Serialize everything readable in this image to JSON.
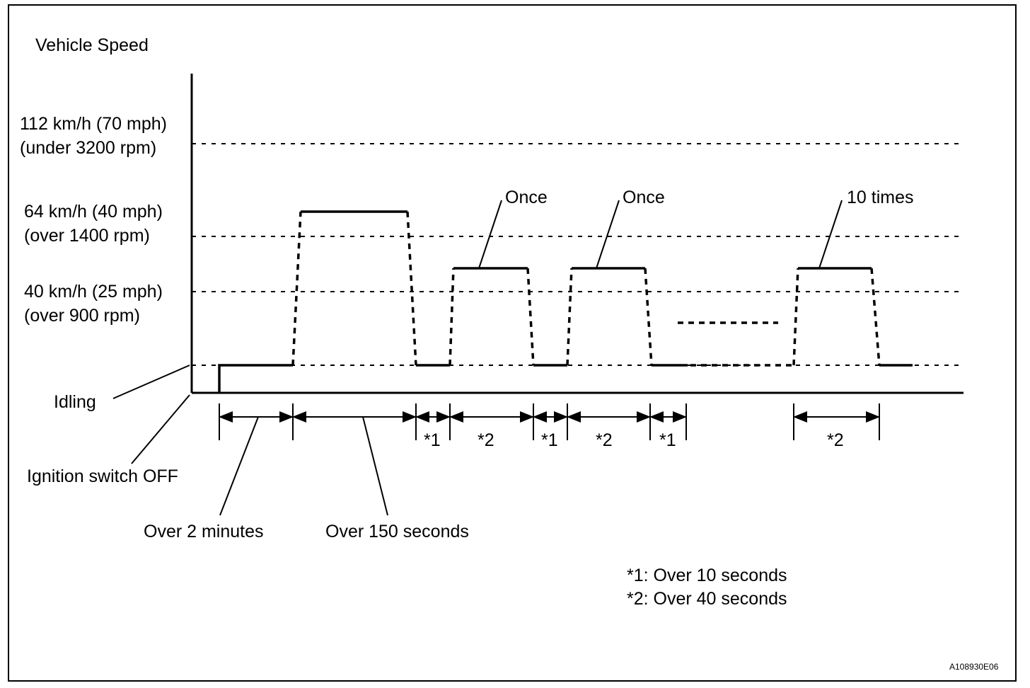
{
  "title": "Vehicle Speed",
  "levels": {
    "l112_line1": "112 km/h (70 mph)",
    "l112_line2": "(under 3200 rpm)",
    "l64_line1": "64 km/h (40 mph)",
    "l64_line2": "(over 1400 rpm)",
    "l40_line1": "40 km/h (25 mph)",
    "l40_line2": "(over 900 rpm)",
    "idling": "Idling",
    "ignition_off": "Ignition switch OFF"
  },
  "callouts": {
    "once_1": "Once",
    "once_2": "Once",
    "ten_times": "10 times"
  },
  "intervals": {
    "over_2_minutes": "Over 2 minutes",
    "over_150_seconds": "Over 150 seconds",
    "mark_1": "*1",
    "mark_2": "*2"
  },
  "notes": {
    "note_1": "*1: Over 10 seconds",
    "note_2": "*2: Over 40 seconds"
  },
  "figure_id": "A108930E06"
}
